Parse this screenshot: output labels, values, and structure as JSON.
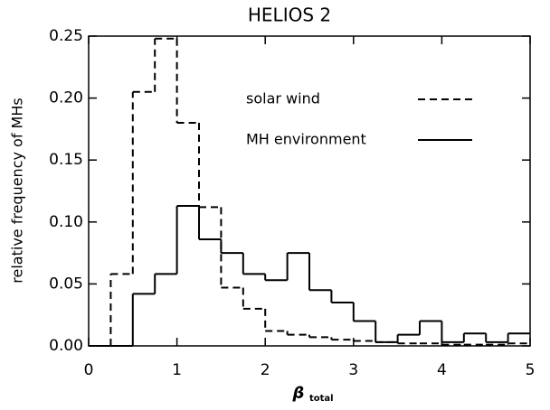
{
  "chart_data": {
    "type": "histogram",
    "title": "HELIOS 2",
    "x_label": "β",
    "x_label_subscript": "total",
    "y_label": "relative frequency of MHs",
    "bins": [
      0,
      0.25,
      0.5,
      0.75,
      1,
      1.25,
      1.5,
      1.75,
      2,
      2.25,
      2.5,
      2.75,
      3,
      3.25,
      3.5,
      3.75,
      4,
      4.25,
      4.5,
      4.75,
      5
    ],
    "series": [
      {
        "name": "solar wind",
        "color": "#000000",
        "linestyle": "dashed",
        "values": [
          0,
          0.058,
          0.205,
          0.248,
          0.18,
          0.112,
          0.047,
          0.03,
          0.012,
          0.009,
          0.007,
          0.005,
          0.004,
          0.003,
          0.002,
          0.002,
          0.001,
          0.001,
          0.001,
          0.002
        ]
      },
      {
        "name": "MH environment",
        "color": "#000000",
        "linestyle": "solid",
        "values": [
          0,
          0,
          0.042,
          0.058,
          0.113,
          0.086,
          0.075,
          0.058,
          0.053,
          0.075,
          0.045,
          0.035,
          0.02,
          0.003,
          0.009,
          0.02,
          0.003,
          0.01,
          0.003,
          0.01
        ]
      }
    ],
    "xlim": [
      0,
      5
    ],
    "xticks": [
      0,
      1,
      2,
      3,
      4,
      5
    ],
    "ylim": [
      0,
      0.25
    ],
    "yticks": [
      {
        "value": 0,
        "label": "0.00"
      },
      {
        "value": 0.05,
        "label": "0.05"
      },
      {
        "value": 0.1,
        "label": "0.10"
      },
      {
        "value": 0.15,
        "label": "0.15"
      },
      {
        "value": 0.2,
        "label": "0.20"
      },
      {
        "value": 0.25,
        "label": "0.25"
      }
    ],
    "legend": "upper right"
  }
}
